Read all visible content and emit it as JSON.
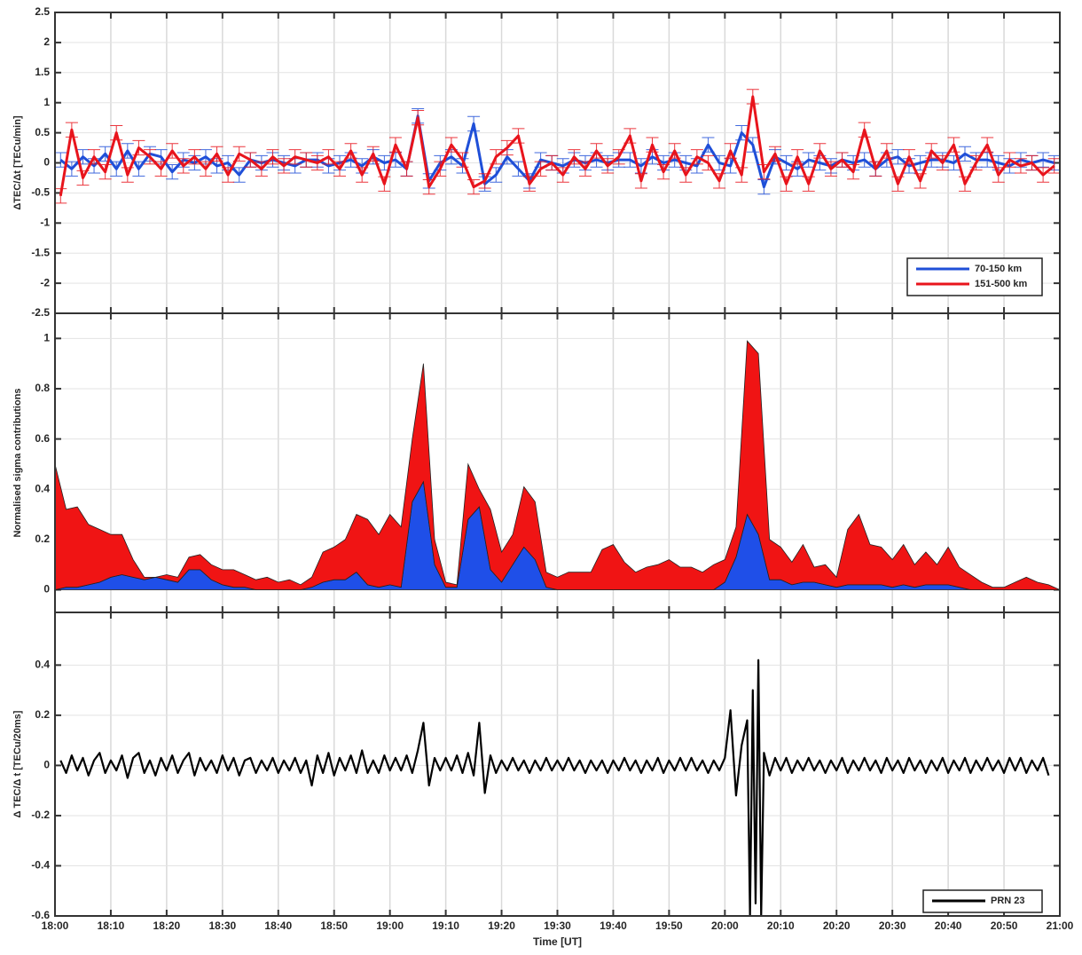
{
  "chart_data": [
    {
      "type": "line",
      "ylabel": "ΔTEC/Δt [TECu/min]",
      "xlim": [
        0,
        180
      ],
      "xticks": [
        0,
        10,
        20,
        30,
        40,
        50,
        60,
        70,
        80,
        90,
        100,
        110,
        120,
        130,
        140,
        150,
        160,
        170,
        180
      ],
      "ylim": [
        -2.5,
        2.5
      ],
      "yticks": [
        -2.5,
        -2,
        -1.5,
        -1,
        -0.5,
        0,
        0.5,
        1,
        1.5,
        2,
        2.5
      ],
      "grid": true,
      "legend": "lower right",
      "x": [
        1,
        3,
        5,
        7,
        9,
        11,
        13,
        15,
        17,
        19,
        21,
        23,
        25,
        27,
        29,
        31,
        33,
        35,
        37,
        39,
        41,
        43,
        45,
        47,
        49,
        51,
        53,
        55,
        57,
        59,
        61,
        63,
        65,
        67,
        69,
        71,
        73,
        75,
        77,
        79,
        81,
        83,
        85,
        87,
        89,
        91,
        93,
        95,
        97,
        99,
        101,
        103,
        105,
        107,
        109,
        111,
        113,
        115,
        117,
        119,
        121,
        123,
        125,
        127,
        129,
        131,
        133,
        135,
        137,
        139,
        141,
        143,
        145,
        147,
        149,
        151,
        153,
        155,
        157,
        159,
        161,
        163,
        165,
        167,
        169,
        171,
        173,
        175,
        177,
        179
      ],
      "series": [
        {
          "name": "70-150 km",
          "color": "#1f4fd8",
          "error": 0.12,
          "values": [
            0.05,
            -0.1,
            0.1,
            -0.05,
            0.15,
            -0.1,
            0.2,
            -0.1,
            0.15,
            0.1,
            -0.15,
            0.05,
            0,
            0.1,
            -0.05,
            0,
            -0.2,
            0.05,
            0,
            0.05,
            0,
            -0.05,
            0.05,
            0.05,
            -0.05,
            0,
            0.05,
            -0.05,
            0.1,
            0,
            0.05,
            -0.1,
            0.78,
            -0.3,
            0,
            0.1,
            -0.05,
            0.65,
            -0.35,
            -0.2,
            0.1,
            -0.1,
            -0.3,
            0.05,
            0,
            -0.05,
            0.05,
            0,
            0.05,
            0,
            0.05,
            0.05,
            -0.05,
            0.1,
            0,
            0.05,
            0,
            -0.05,
            0.3,
            0,
            -0.05,
            0.5,
            0.3,
            -0.4,
            0.1,
            0,
            -0.1,
            0.05,
            0,
            -0.05,
            0.05,
            0,
            0.05,
            -0.1,
            0.05,
            0.1,
            -0.05,
            0,
            0.05,
            0.05,
            0,
            0.15,
            0.05,
            0.05,
            0,
            -0.05,
            0.05,
            0,
            0.05,
            0
          ]
        },
        {
          "name": "151-500 km",
          "color": "#e8141c",
          "error": 0.12,
          "values": [
            -0.55,
            0.55,
            -0.25,
            0.1,
            -0.15,
            0.5,
            -0.2,
            0.25,
            0.1,
            -0.1,
            0.2,
            -0.05,
            0.1,
            -0.1,
            0.15,
            -0.2,
            0.15,
            0.05,
            -0.1,
            0.1,
            -0.05,
            0.1,
            0.05,
            0,
            0.1,
            -0.1,
            0.2,
            -0.2,
            0.15,
            -0.35,
            0.3,
            -0.1,
            0.75,
            -0.4,
            -0.1,
            0.3,
            0.05,
            -0.4,
            -0.3,
            0.1,
            0.25,
            0.45,
            -0.35,
            -0.1,
            0,
            -0.2,
            0.1,
            -0.1,
            0.2,
            -0.05,
            0.1,
            0.45,
            -0.3,
            0.3,
            -0.15,
            0.2,
            -0.2,
            0.1,
            0,
            -0.3,
            0.2,
            -0.2,
            1.1,
            -0.15,
            0.15,
            -0.35,
            0.1,
            -0.35,
            0.2,
            -0.1,
            0.05,
            -0.15,
            0.55,
            -0.1,
            0.2,
            -0.35,
            0.1,
            -0.3,
            0.2,
            0,
            0.3,
            -0.35,
            0,
            0.3,
            -0.2,
            0.05,
            -0.05,
            0,
            -0.2,
            -0.05
          ]
        }
      ]
    },
    {
      "type": "area",
      "ylabel": "Normalised sigma contributions",
      "xlim": [
        0,
        180
      ],
      "xticks": [
        0,
        10,
        20,
        30,
        40,
        50,
        60,
        70,
        80,
        90,
        100,
        110,
        120,
        130,
        140,
        150,
        160,
        170,
        180
      ],
      "ylim": [
        -0.09,
        1.1
      ],
      "yticks": [
        0,
        0.2,
        0.4,
        0.6,
        0.8,
        1
      ],
      "grid": true,
      "stacked": true,
      "x": [
        0,
        2,
        4,
        6,
        8,
        10,
        12,
        14,
        16,
        18,
        20,
        22,
        24,
        26,
        28,
        30,
        32,
        34,
        36,
        38,
        40,
        42,
        44,
        46,
        48,
        50,
        52,
        54,
        56,
        58,
        60,
        62,
        64,
        66,
        68,
        70,
        72,
        74,
        76,
        78,
        80,
        82,
        84,
        86,
        88,
        90,
        92,
        94,
        96,
        98,
        100,
        102,
        104,
        106,
        108,
        110,
        112,
        114,
        116,
        118,
        120,
        122,
        124,
        126,
        128,
        130,
        132,
        134,
        136,
        138,
        140,
        142,
        144,
        146,
        148,
        150,
        152,
        154,
        156,
        158,
        160,
        162,
        164,
        166,
        168,
        170,
        172,
        174,
        176,
        178,
        180
      ],
      "series": [
        {
          "color": "#1f4fe8",
          "values": [
            0,
            0.01,
            0.01,
            0.02,
            0.03,
            0.05,
            0.06,
            0.05,
            0.04,
            0.05,
            0.04,
            0.03,
            0.08,
            0.08,
            0.04,
            0.02,
            0.01,
            0.01,
            0,
            0,
            0,
            0,
            0,
            0.01,
            0.03,
            0.04,
            0.04,
            0.07,
            0.02,
            0.01,
            0.02,
            0.01,
            0.35,
            0.43,
            0.1,
            0.01,
            0.01,
            0.28,
            0.33,
            0.08,
            0.03,
            0.1,
            0.17,
            0.12,
            0.01,
            0,
            0,
            0,
            0,
            0,
            0,
            0,
            0,
            0,
            0,
            0,
            0,
            0,
            0,
            0,
            0.03,
            0.13,
            0.3,
            0.22,
            0.04,
            0.04,
            0.02,
            0.03,
            0.03,
            0.02,
            0.01,
            0.02,
            0.02,
            0.02,
            0.02,
            0.01,
            0.02,
            0.01,
            0.02,
            0.02,
            0.02,
            0.01,
            0,
            0,
            0,
            0,
            0,
            0,
            0,
            0,
            0
          ]
        },
        {
          "color": "#f01414",
          "values": [
            0.5,
            0.31,
            0.32,
            0.24,
            0.21,
            0.17,
            0.16,
            0.07,
            0.01,
            0,
            0.02,
            0.02,
            0.05,
            0.06,
            0.06,
            0.06,
            0.07,
            0.05,
            0.04,
            0.05,
            0.03,
            0.04,
            0.02,
            0.04,
            0.12,
            0.13,
            0.16,
            0.23,
            0.26,
            0.21,
            0.28,
            0.24,
            0.25,
            0.47,
            0.1,
            0.02,
            0.01,
            0.22,
            0.07,
            0.24,
            0.12,
            0.12,
            0.24,
            0.23,
            0.06,
            0.05,
            0.07,
            0.07,
            0.07,
            0.16,
            0.18,
            0.11,
            0.07,
            0.09,
            0.1,
            0.12,
            0.09,
            0.09,
            0.07,
            0.1,
            0.09,
            0.12,
            0.69,
            0.72,
            0.16,
            0.13,
            0.09,
            0.15,
            0.06,
            0.08,
            0.04,
            0.22,
            0.28,
            0.16,
            0.15,
            0.11,
            0.16,
            0.09,
            0.13,
            0.08,
            0.15,
            0.08,
            0.06,
            0.03,
            0.01,
            0.01,
            0.03,
            0.05,
            0.03,
            0.02,
            0
          ]
        }
      ]
    },
    {
      "type": "line",
      "ylabel": "Δ TEC/Δ t [TECu/20ms]",
      "xlabel": "Time [UT]",
      "xlim": [
        0,
        180
      ],
      "xticks": [
        {
          "value": 0,
          "label": "18:00"
        },
        {
          "value": 10,
          "label": "18:10"
        },
        {
          "value": 20,
          "label": "18:20"
        },
        {
          "value": 30,
          "label": "18:30"
        },
        {
          "value": 40,
          "label": "18:40"
        },
        {
          "value": 50,
          "label": "18:50"
        },
        {
          "value": 60,
          "label": "19:00"
        },
        {
          "value": 70,
          "label": "19:10"
        },
        {
          "value": 80,
          "label": "19:20"
        },
        {
          "value": 90,
          "label": "19:30"
        },
        {
          "value": 100,
          "label": "19:40"
        },
        {
          "value": 110,
          "label": "19:50"
        },
        {
          "value": 120,
          "label": "20:00"
        },
        {
          "value": 130,
          "label": "20:10"
        },
        {
          "value": 140,
          "label": "20:20"
        },
        {
          "value": 150,
          "label": "20:30"
        },
        {
          "value": 160,
          "label": "20:40"
        },
        {
          "value": 170,
          "label": "20:50"
        },
        {
          "value": 180,
          "label": "21:00"
        }
      ],
      "ylim": [
        -0.6,
        0.61
      ],
      "yticks": [
        -0.6,
        -0.4,
        -0.2,
        0,
        0.2,
        0.4
      ],
      "grid": true,
      "legend": "lower right",
      "x": [
        1,
        2,
        3,
        4,
        5,
        6,
        7,
        8,
        9,
        10,
        11,
        12,
        13,
        14,
        15,
        16,
        17,
        18,
        19,
        20,
        21,
        22,
        23,
        24,
        25,
        26,
        27,
        28,
        29,
        30,
        31,
        32,
        33,
        34,
        35,
        36,
        37,
        38,
        39,
        40,
        41,
        42,
        43,
        44,
        45,
        46,
        47,
        48,
        49,
        50,
        51,
        52,
        53,
        54,
        55,
        56,
        57,
        58,
        59,
        60,
        61,
        62,
        63,
        64,
        65,
        66,
        67,
        68,
        69,
        70,
        71,
        72,
        73,
        74,
        75,
        76,
        77,
        78,
        79,
        80,
        81,
        82,
        83,
        84,
        85,
        86,
        87,
        88,
        89,
        90,
        91,
        92,
        93,
        94,
        95,
        96,
        97,
        98,
        99,
        100,
        101,
        102,
        103,
        104,
        105,
        106,
        107,
        108,
        109,
        110,
        111,
        112,
        113,
        114,
        115,
        116,
        117,
        118,
        119,
        120,
        121,
        122,
        123,
        124,
        124.5,
        125,
        125.5,
        126,
        126.5,
        127,
        128,
        129,
        130,
        131,
        132,
        133,
        134,
        135,
        136,
        137,
        138,
        139,
        140,
        141,
        142,
        143,
        144,
        145,
        146,
        147,
        148,
        149,
        150,
        151,
        152,
        153,
        154,
        155,
        156,
        157,
        158,
        159,
        160,
        161,
        162,
        163,
        164,
        165,
        166,
        167,
        168,
        169,
        170,
        171,
        172,
        173,
        174,
        175,
        176,
        177,
        178
      ],
      "series": [
        {
          "name": "PRN 23",
          "color": "#000000",
          "values": [
            0.02,
            -0.03,
            0.04,
            -0.02,
            0.03,
            -0.04,
            0.02,
            0.05,
            -0.03,
            0.02,
            -0.02,
            0.04,
            -0.05,
            0.03,
            0.05,
            -0.03,
            0.02,
            -0.04,
            0.03,
            -0.02,
            0.04,
            -0.03,
            0.02,
            0.05,
            -0.04,
            0.03,
            -0.02,
            0.02,
            -0.03,
            0.04,
            -0.02,
            0.03,
            -0.04,
            0.02,
            0.03,
            -0.03,
            0.02,
            -0.02,
            0.03,
            -0.03,
            0.02,
            -0.02,
            0.03,
            -0.03,
            0.02,
            -0.08,
            0.04,
            -0.03,
            0.05,
            -0.04,
            0.03,
            -0.02,
            0.04,
            -0.03,
            0.06,
            -0.03,
            0.02,
            -0.03,
            0.04,
            -0.02,
            0.03,
            -0.02,
            0.04,
            -0.03,
            0.06,
            0.17,
            -0.08,
            0.03,
            -0.02,
            0.03,
            -0.02,
            0.04,
            -0.03,
            0.05,
            -0.04,
            0.17,
            -0.11,
            0.04,
            -0.03,
            0.02,
            -0.02,
            0.03,
            -0.02,
            0.02,
            -0.03,
            0.02,
            -0.02,
            0.03,
            -0.02,
            0.02,
            -0.02,
            0.03,
            -0.02,
            0.02,
            -0.03,
            0.02,
            -0.02,
            0.02,
            -0.03,
            0.02,
            -0.02,
            0.03,
            -0.02,
            0.02,
            -0.03,
            0.02,
            -0.02,
            0.03,
            -0.03,
            0.02,
            -0.02,
            0.03,
            -0.02,
            0.03,
            -0.02,
            0.02,
            -0.03,
            0.02,
            -0.02,
            0.03,
            0.22,
            -0.12,
            0.08,
            0.18,
            -0.6,
            0.3,
            -0.55,
            0.42,
            -0.6,
            0.05,
            -0.04,
            0.03,
            -0.02,
            0.03,
            -0.03,
            0.02,
            -0.02,
            0.03,
            -0.02,
            0.02,
            -0.03,
            0.02,
            -0.02,
            0.03,
            -0.03,
            0.02,
            -0.02,
            0.03,
            -0.02,
            0.02,
            -0.03,
            0.03,
            -0.02,
            0.02,
            -0.03,
            0.03,
            -0.02,
            0.02,
            -0.03,
            0.02,
            -0.02,
            0.03,
            -0.03,
            0.02,
            -0.02,
            0.03,
            -0.03,
            0.02,
            -0.02,
            0.03,
            -0.02,
            0.02,
            -0.03,
            0.03,
            -0.02,
            0.03,
            -0.03,
            0.02,
            -0.02,
            0.03,
            -0.04
          ]
        }
      ]
    }
  ]
}
